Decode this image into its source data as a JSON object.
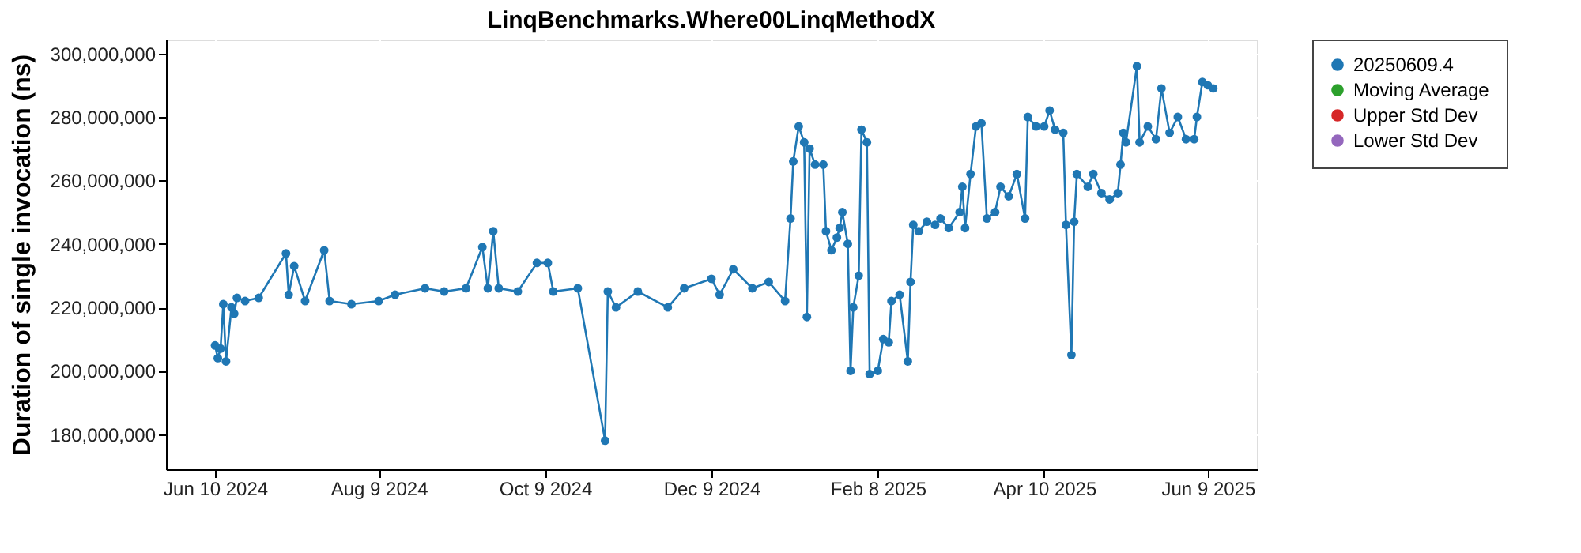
{
  "chart_data": {
    "type": "line",
    "title": "LinqBenchmarks.Where00LinqMethodX",
    "ylabel": "Duration of single invocation (ns)",
    "xlim": [
      "2024-05-23",
      "2025-06-27"
    ],
    "xticks": [
      {
        "value": "2024-06-10",
        "label": "Jun 10 2024"
      },
      {
        "value": "2024-08-09",
        "label": "Aug 9 2024"
      },
      {
        "value": "2024-10-09",
        "label": "Oct 9 2024"
      },
      {
        "value": "2024-12-09",
        "label": "Dec 9 2024"
      },
      {
        "value": "2025-02-08",
        "label": "Feb 8 2025"
      },
      {
        "value": "2025-04-10",
        "label": "Apr 10 2025"
      },
      {
        "value": "2025-06-09",
        "label": "Jun 9 2025"
      }
    ],
    "ylim": [
      169000000,
      304400000
    ],
    "yticks": [
      {
        "value": 180000000,
        "label": "180,000,000"
      },
      {
        "value": 200000000,
        "label": "200,000,000"
      },
      {
        "value": 220000000,
        "label": "220,000,000"
      },
      {
        "value": 240000000,
        "label": "240,000,000"
      },
      {
        "value": 260000000,
        "label": "260,000,000"
      },
      {
        "value": 280000000,
        "label": "280,000,000"
      },
      {
        "value": 300000000,
        "label": "300,000,000"
      }
    ],
    "grid": true,
    "legend": "right",
    "marker": "circle",
    "line_style": "solid",
    "series": [
      {
        "name": "20250609.4",
        "color": "#1f77b4",
        "x": [
          "2024-06-10",
          "2024-06-11",
          "2024-06-12",
          "2024-06-13",
          "2024-06-14",
          "2024-06-16",
          "2024-06-17",
          "2024-06-18",
          "2024-06-21",
          "2024-06-26",
          "2024-07-06",
          "2024-07-07",
          "2024-07-09",
          "2024-07-13",
          "2024-07-20",
          "2024-07-22",
          "2024-07-30",
          "2024-08-09",
          "2024-08-15",
          "2024-08-26",
          "2024-09-02",
          "2024-09-10",
          "2024-09-16",
          "2024-09-18",
          "2024-09-20",
          "2024-09-22",
          "2024-09-29",
          "2024-10-06",
          "2024-10-10",
          "2024-10-12",
          "2024-10-21",
          "2024-10-31",
          "2024-11-01",
          "2024-11-04",
          "2024-11-12",
          "2024-11-23",
          "2024-11-29",
          "2024-12-09",
          "2024-12-12",
          "2024-12-17",
          "2024-12-24",
          "2024-12-30",
          "2025-01-05",
          "2025-01-07",
          "2025-01-08",
          "2025-01-10",
          "2025-01-12",
          "2025-01-13",
          "2025-01-14",
          "2025-01-16",
          "2025-01-19",
          "2025-01-20",
          "2025-01-22",
          "2025-01-24",
          "2025-01-25",
          "2025-01-26",
          "2025-01-28",
          "2025-01-29",
          "2025-01-30",
          "2025-02-01",
          "2025-02-02",
          "2025-02-04",
          "2025-02-05",
          "2025-02-08",
          "2025-02-10",
          "2025-02-12",
          "2025-02-13",
          "2025-02-16",
          "2025-02-19",
          "2025-02-20",
          "2025-02-21",
          "2025-02-23",
          "2025-02-26",
          "2025-03-01",
          "2025-03-03",
          "2025-03-06",
          "2025-03-10",
          "2025-03-11",
          "2025-03-12",
          "2025-03-14",
          "2025-03-16",
          "2025-03-18",
          "2025-03-20",
          "2025-03-23",
          "2025-03-25",
          "2025-03-28",
          "2025-03-31",
          "2025-04-03",
          "2025-04-04",
          "2025-04-07",
          "2025-04-10",
          "2025-04-12",
          "2025-04-14",
          "2025-04-17",
          "2025-04-18",
          "2025-04-20",
          "2025-04-21",
          "2025-04-22",
          "2025-04-26",
          "2025-04-28",
          "2025-05-01",
          "2025-05-04",
          "2025-05-07",
          "2025-05-08",
          "2025-05-09",
          "2025-05-10",
          "2025-05-14",
          "2025-05-15",
          "2025-05-18",
          "2025-05-21",
          "2025-05-23",
          "2025-05-26",
          "2025-05-29",
          "2025-06-01",
          "2025-06-04",
          "2025-06-05",
          "2025-06-07",
          "2025-06-09",
          "2025-06-11"
        ],
        "values": [
          208000000,
          204000000,
          207000000,
          221000000,
          203000000,
          220000000,
          218000000,
          223000000,
          222000000,
          223000000,
          237000000,
          224000000,
          233000000,
          222000000,
          238000000,
          222000000,
          221000000,
          222000000,
          224000000,
          226000000,
          225000000,
          226000000,
          239000000,
          226000000,
          244000000,
          226000000,
          225000000,
          234000000,
          234000000,
          225000000,
          226000000,
          178000000,
          225000000,
          220000000,
          225000000,
          220000000,
          226000000,
          229000000,
          224000000,
          232000000,
          226000000,
          228000000,
          222000000,
          248000000,
          266000000,
          277000000,
          272000000,
          217000000,
          270000000,
          265000000,
          265000000,
          244000000,
          238000000,
          242000000,
          245000000,
          250000000,
          240000000,
          200000000,
          220000000,
          230000000,
          276000000,
          272000000,
          199000000,
          200000000,
          210000000,
          209000000,
          222000000,
          224000000,
          203000000,
          228000000,
          246000000,
          244000000,
          247000000,
          246000000,
          248000000,
          245000000,
          250000000,
          258000000,
          245000000,
          262000000,
          277000000,
          278000000,
          248000000,
          250000000,
          258000000,
          255000000,
          262000000,
          248000000,
          280000000,
          277000000,
          277000000,
          282000000,
          276000000,
          275000000,
          246000000,
          205000000,
          247000000,
          262000000,
          258000000,
          262000000,
          256000000,
          254000000,
          256000000,
          265000000,
          275000000,
          272000000,
          296000000,
          272000000,
          277000000,
          273000000,
          289000000,
          275000000,
          280000000,
          273000000,
          273000000,
          280000000,
          291000000,
          290000000,
          289000000
        ]
      },
      {
        "name": "Moving Average",
        "color": "#2ca02c"
      },
      {
        "name": "Upper Std Dev",
        "color": "#d62728"
      },
      {
        "name": "Lower Std Dev",
        "color": "#9467bd"
      }
    ]
  }
}
